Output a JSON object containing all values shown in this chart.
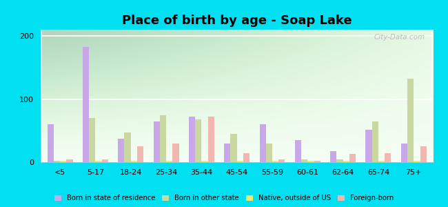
{
  "title": "Place of birth by age - Soap Lake",
  "categories": [
    "<5",
    "5-17",
    "18-24",
    "25-34",
    "35-44",
    "45-54",
    "55-59",
    "60-61",
    "62-64",
    "65-74",
    "75+"
  ],
  "series": {
    "Born in state of residence": [
      60,
      183,
      38,
      65,
      72,
      30,
      60,
      35,
      18,
      52,
      30
    ],
    "Born in other state": [
      3,
      70,
      47,
      75,
      68,
      45,
      30,
      5,
      5,
      65,
      133
    ],
    "Native, outside of US": [
      2,
      2,
      2,
      2,
      2,
      2,
      3,
      2,
      2,
      2,
      2
    ],
    "Foreign-born": [
      5,
      5,
      25,
      30,
      72,
      15,
      5,
      3,
      13,
      15,
      25
    ]
  },
  "colors": {
    "Born in state of residence": "#c8a8e8",
    "Born in other state": "#c8d8a0",
    "Native, outside of US": "#f0e870",
    "Foreign-born": "#f0b8b0"
  },
  "ylim": [
    0,
    210
  ],
  "yticks": [
    0,
    100,
    200
  ],
  "outer_bg": "#00e0f0",
  "plot_bg_top": "#d8f0d8",
  "plot_bg_bottom": "#f4fff4",
  "watermark": "City-Data.com",
  "bar_width": 0.18,
  "title_fontsize": 13,
  "tick_fontsize": 8
}
